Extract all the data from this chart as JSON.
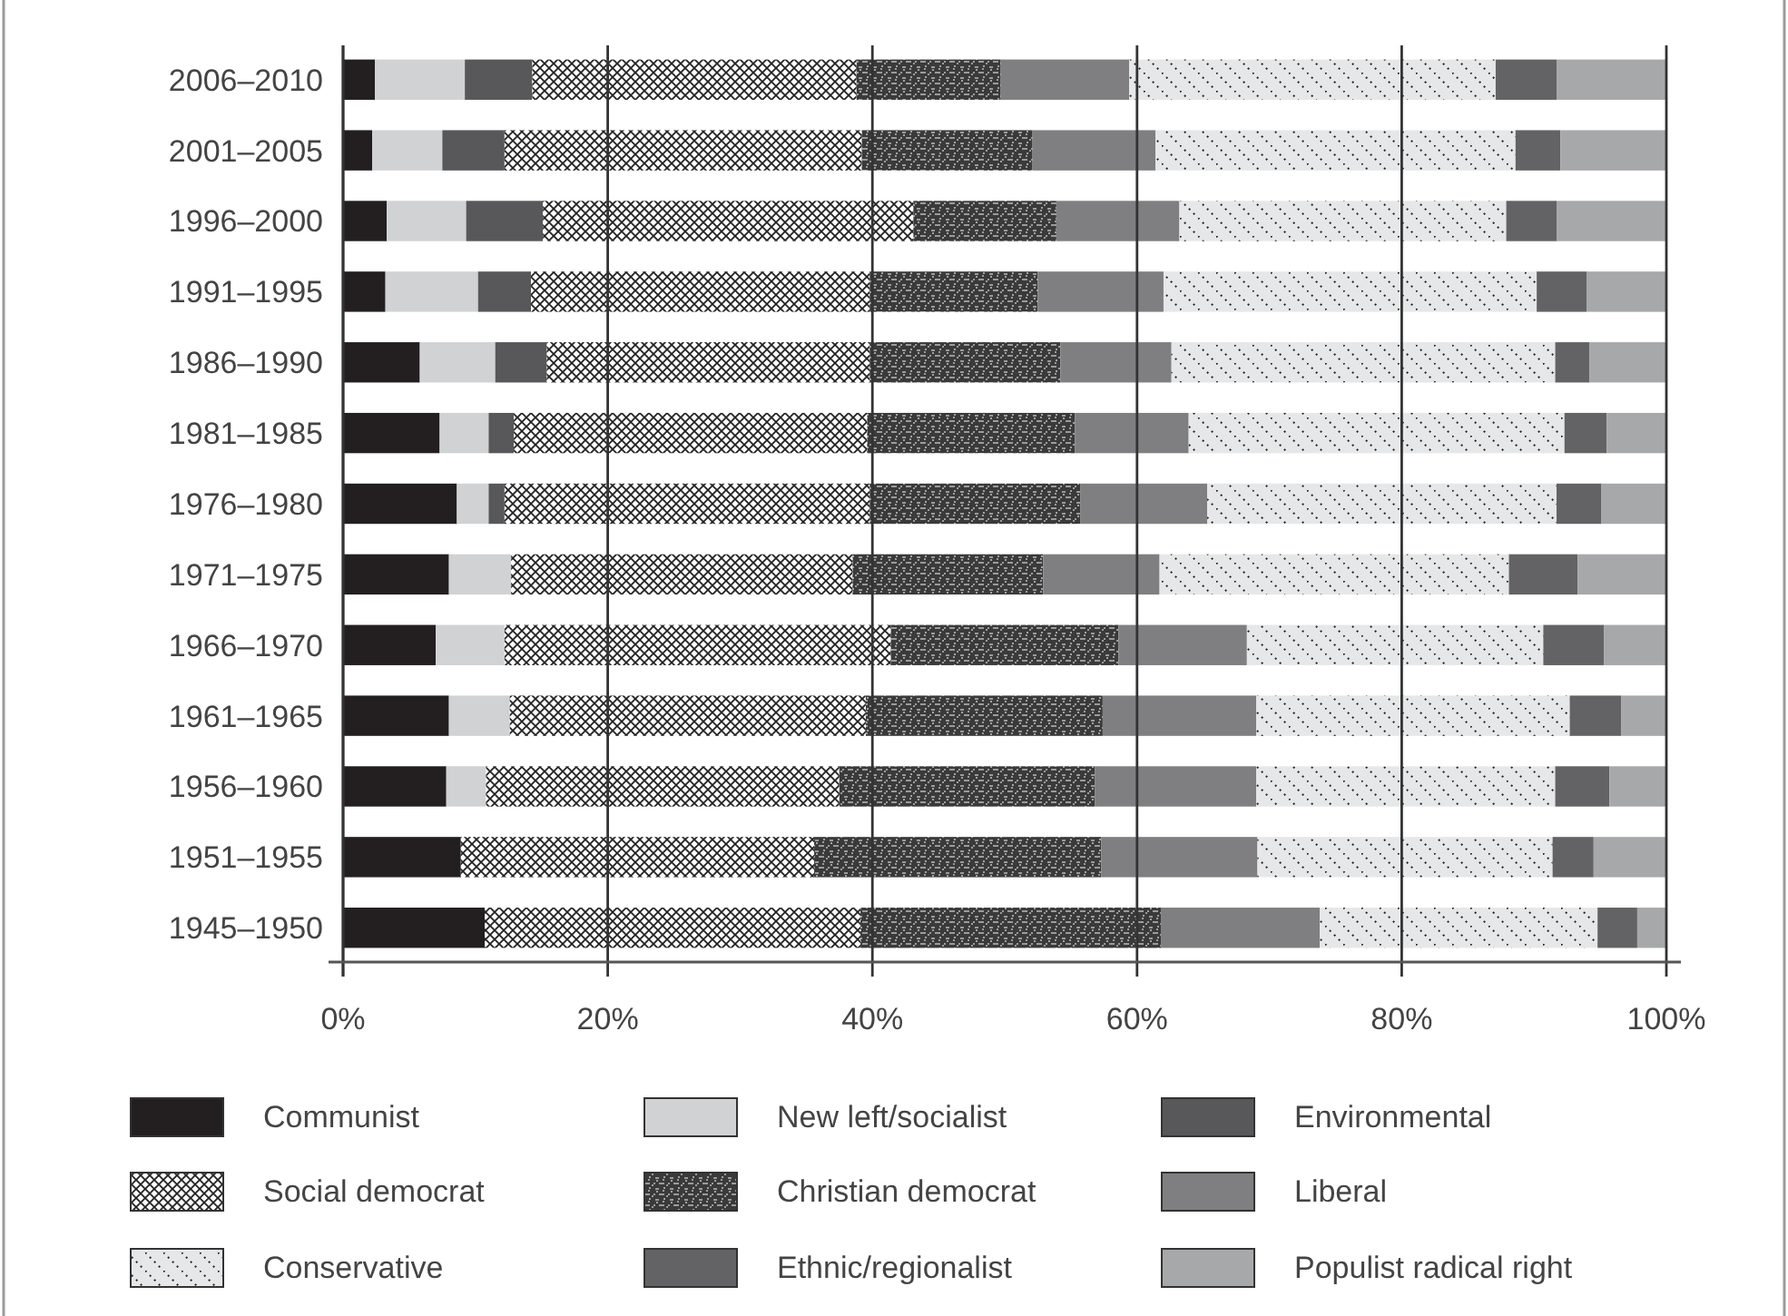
{
  "chart_data": {
    "type": "bar",
    "orientation": "horizontal",
    "stacked": true,
    "categories": [
      "2006–2010",
      "2001–2005",
      "1996–2000",
      "1991–1995",
      "1986–1990",
      "1981–1985",
      "1976–1980",
      "1971–1975",
      "1966–1970",
      "1961–1965",
      "1956–1960",
      "1951–1955",
      "1945–1950"
    ],
    "xlim": [
      0,
      100
    ],
    "xticks": [
      {
        "value": 0,
        "label": "0%"
      },
      {
        "value": 20,
        "label": "20%"
      },
      {
        "value": 40,
        "label": "40%"
      },
      {
        "value": 60,
        "label": "60%"
      },
      {
        "value": 80,
        "label": "80%"
      },
      {
        "value": 100,
        "label": "100%"
      }
    ],
    "grid": "x",
    "legend": "bottom",
    "series": [
      {
        "name": "Communist",
        "color": "#231f20",
        "values": [
          2.4,
          2.2,
          3.3,
          3.2,
          5.8,
          7.3,
          8.6,
          8.0,
          7.0,
          8.0,
          7.8,
          8.9,
          10.7
        ]
      },
      {
        "name": "New left/socialist",
        "color": "#d1d2d4",
        "values": [
          6.8,
          5.3,
          6.0,
          7.0,
          5.7,
          3.7,
          2.4,
          4.7,
          5.2,
          4.6,
          3.0,
          0,
          0
        ]
      },
      {
        "name": "Environmental",
        "color": "#58585a",
        "values": [
          5.1,
          4.7,
          5.8,
          4.0,
          3.9,
          1.9,
          1.2,
          0,
          0,
          0,
          0,
          0,
          0
        ]
      },
      {
        "name": "Social democrat",
        "color": "#ffffff",
        "values": [
          24.5,
          27.0,
          28.0,
          25.6,
          24.4,
          26.7,
          27.6,
          25.8,
          29.2,
          26.9,
          26.7,
          26.7,
          28.4
        ]
      },
      {
        "name": "Christian democrat",
        "color": "#3a3a3a",
        "values": [
          10.9,
          12.9,
          10.8,
          12.7,
          14.4,
          15.7,
          15.9,
          14.4,
          17.2,
          17.9,
          19.3,
          21.7,
          22.7
        ]
      },
      {
        "name": "Liberal",
        "color": "#7f7f81",
        "values": [
          9.7,
          9.3,
          9.3,
          9.5,
          8.4,
          8.6,
          9.6,
          8.8,
          9.7,
          11.6,
          12.2,
          11.8,
          12.0
        ]
      },
      {
        "name": "Conservative",
        "color": "#e6e7e8",
        "values": [
          27.7,
          27.2,
          24.7,
          28.2,
          29.0,
          28.4,
          26.4,
          26.4,
          22.4,
          23.7,
          22.6,
          22.3,
          21.0
        ]
      },
      {
        "name": "Ethnic/regionalist",
        "color": "#636365",
        "values": [
          4.6,
          3.4,
          3.8,
          3.8,
          2.6,
          3.2,
          3.4,
          5.2,
          4.6,
          3.9,
          4.1,
          3.1,
          3.0
        ]
      },
      {
        "name": "Populist radical right",
        "color": "#a7a8aa",
        "values": [
          8.3,
          8.0,
          8.3,
          6.0,
          5.8,
          4.5,
          4.9,
          6.7,
          4.7,
          3.4,
          4.3,
          5.5,
          2.2
        ]
      }
    ]
  }
}
